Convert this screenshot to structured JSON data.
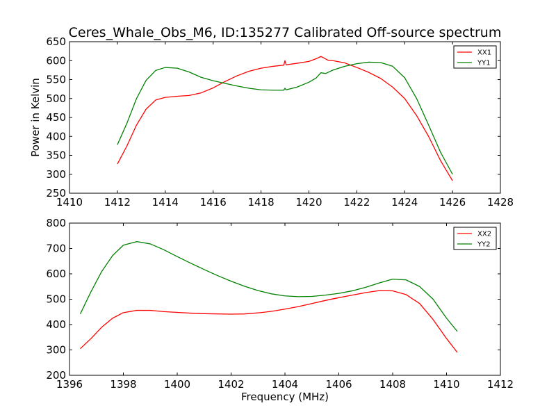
{
  "title": "Ceres_Whale_Obs_M6, ID:135277 Calibrated Off-source spectrum",
  "colors": {
    "red": "#ff0000",
    "green": "#008000"
  },
  "chart_data": [
    {
      "type": "line",
      "xlabel": "",
      "ylabel": "Power in Kelvin",
      "xlim": [
        1410,
        1428
      ],
      "ylim": [
        250,
        650
      ],
      "x_ticks": [
        "1410",
        "1412",
        "1414",
        "1416",
        "1418",
        "1420",
        "1422",
        "1424",
        "1426",
        "1428"
      ],
      "y_ticks": [
        "250",
        "300",
        "350",
        "400",
        "450",
        "500",
        "550",
        "600",
        "650"
      ],
      "legend": "top-right",
      "series": [
        {
          "name": "XX1",
          "color": "#ff0000",
          "points": [
            [
              1412.0,
              327
            ],
            [
              1412.4,
              375
            ],
            [
              1412.8,
              430
            ],
            [
              1413.2,
              472
            ],
            [
              1413.6,
              496
            ],
            [
              1414.0,
              503
            ],
            [
              1414.5,
              506
            ],
            [
              1415.0,
              508
            ],
            [
              1415.5,
              515
            ],
            [
              1416.0,
              528
            ],
            [
              1416.5,
              545
            ],
            [
              1417.0,
              560
            ],
            [
              1417.5,
              572
            ],
            [
              1418.0,
              580
            ],
            [
              1418.5,
              585
            ],
            [
              1418.95,
              588
            ],
            [
              1419.0,
              600
            ],
            [
              1419.05,
              589
            ],
            [
              1419.5,
              593
            ],
            [
              1420.0,
              598
            ],
            [
              1420.3,
              605
            ],
            [
              1420.5,
              611
            ],
            [
              1420.6,
              608
            ],
            [
              1420.8,
              601
            ],
            [
              1421.0,
              600
            ],
            [
              1421.5,
              594
            ],
            [
              1422.0,
              582
            ],
            [
              1422.5,
              569
            ],
            [
              1423.0,
              553
            ],
            [
              1423.5,
              530
            ],
            [
              1424.0,
              500
            ],
            [
              1424.5,
              455
            ],
            [
              1425.0,
              400
            ],
            [
              1425.5,
              336
            ],
            [
              1426.0,
              283
            ]
          ]
        },
        {
          "name": "YY1",
          "color": "#008000",
          "points": [
            [
              1412.0,
              378
            ],
            [
              1412.4,
              435
            ],
            [
              1412.8,
              500
            ],
            [
              1413.2,
              548
            ],
            [
              1413.6,
              574
            ],
            [
              1414.0,
              582
            ],
            [
              1414.5,
              580
            ],
            [
              1415.0,
              570
            ],
            [
              1415.5,
              556
            ],
            [
              1416.0,
              547
            ],
            [
              1416.5,
              540
            ],
            [
              1417.0,
              533
            ],
            [
              1417.5,
              527
            ],
            [
              1418.0,
              523
            ],
            [
              1418.5,
              522
            ],
            [
              1418.95,
              522
            ],
            [
              1419.0,
              527
            ],
            [
              1419.05,
              523
            ],
            [
              1419.5,
              530
            ],
            [
              1420.0,
              543
            ],
            [
              1420.3,
              554
            ],
            [
              1420.5,
              568
            ],
            [
              1420.7,
              566
            ],
            [
              1421.0,
              575
            ],
            [
              1421.5,
              585
            ],
            [
              1422.0,
              592
            ],
            [
              1422.5,
              596
            ],
            [
              1423.0,
              595
            ],
            [
              1423.5,
              585
            ],
            [
              1424.0,
              555
            ],
            [
              1424.5,
              500
            ],
            [
              1425.0,
              430
            ],
            [
              1425.5,
              358
            ],
            [
              1426.0,
              300
            ]
          ]
        }
      ]
    },
    {
      "type": "line",
      "xlabel": "Frequency (MHz)",
      "ylabel": "",
      "xlim": [
        1396,
        1412
      ],
      "ylim": [
        200,
        800
      ],
      "x_ticks": [
        "1396",
        "1398",
        "1400",
        "1402",
        "1404",
        "1406",
        "1408",
        "1410",
        "1412"
      ],
      "y_ticks": [
        "200",
        "300",
        "400",
        "500",
        "600",
        "700",
        "800"
      ],
      "legend": "top-right",
      "series": [
        {
          "name": "XX2",
          "color": "#ff0000",
          "points": [
            [
              1396.4,
              305
            ],
            [
              1396.8,
              345
            ],
            [
              1397.2,
              390
            ],
            [
              1397.6,
              425
            ],
            [
              1398.0,
              447
            ],
            [
              1398.5,
              456
            ],
            [
              1399.0,
              456
            ],
            [
              1399.5,
              451
            ],
            [
              1400.0,
              448
            ],
            [
              1400.5,
              445
            ],
            [
              1401.0,
              443
            ],
            [
              1401.5,
              442
            ],
            [
              1402.0,
              441
            ],
            [
              1402.5,
              442
            ],
            [
              1403.0,
              446
            ],
            [
              1403.5,
              452
            ],
            [
              1404.0,
              461
            ],
            [
              1404.5,
              471
            ],
            [
              1405.0,
              483
            ],
            [
              1405.5,
              495
            ],
            [
              1406.0,
              506
            ],
            [
              1406.5,
              516
            ],
            [
              1407.0,
              526
            ],
            [
              1407.5,
              534
            ],
            [
              1408.0,
              533
            ],
            [
              1408.5,
              518
            ],
            [
              1409.0,
              483
            ],
            [
              1409.5,
              420
            ],
            [
              1410.0,
              345
            ],
            [
              1410.4,
              290
            ]
          ]
        },
        {
          "name": "YY2",
          "color": "#008000",
          "points": [
            [
              1396.4,
              442
            ],
            [
              1396.8,
              530
            ],
            [
              1397.2,
              610
            ],
            [
              1397.6,
              672
            ],
            [
              1398.0,
              713
            ],
            [
              1398.5,
              727
            ],
            [
              1399.0,
              718
            ],
            [
              1399.5,
              695
            ],
            [
              1400.0,
              668
            ],
            [
              1400.5,
              642
            ],
            [
              1401.0,
              617
            ],
            [
              1401.5,
              593
            ],
            [
              1402.0,
              571
            ],
            [
              1402.5,
              551
            ],
            [
              1403.0,
              534
            ],
            [
              1403.5,
              521
            ],
            [
              1404.0,
              513
            ],
            [
              1404.5,
              510
            ],
            [
              1405.0,
              511
            ],
            [
              1405.5,
              516
            ],
            [
              1406.0,
              523
            ],
            [
              1406.5,
              533
            ],
            [
              1407.0,
              547
            ],
            [
              1407.5,
              564
            ],
            [
              1408.0,
              579
            ],
            [
              1408.5,
              576
            ],
            [
              1409.0,
              550
            ],
            [
              1409.5,
              500
            ],
            [
              1410.0,
              425
            ],
            [
              1410.4,
              373
            ]
          ]
        }
      ]
    }
  ]
}
